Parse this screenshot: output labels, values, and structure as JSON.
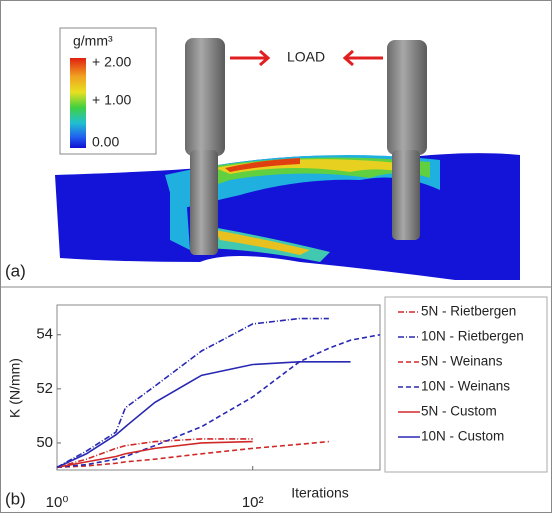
{
  "figure_a": {
    "label": "(a)",
    "annotation": "LOAD",
    "colorbar": {
      "title": "g/mm³",
      "labels": [
        "+ 2.00",
        "+ 1.00",
        "0.00"
      ]
    }
  },
  "chart_data": {
    "type": "line",
    "panel_label": "(b)",
    "x_label": "Iterations",
    "y_label": "K (N/mm)",
    "xscale": "log",
    "xlim": [
      1,
      2000
    ],
    "xticks": [
      {
        "value": 1,
        "label": "10⁰"
      },
      {
        "value": 100,
        "label": "10²"
      }
    ],
    "ylim": [
      49,
      55.1
    ],
    "yticks": [
      50,
      52,
      54
    ],
    "grid": false,
    "legend": "right",
    "x": [
      1,
      2,
      4,
      5,
      10,
      30,
      100,
      300,
      600,
      1000,
      2000
    ],
    "series": [
      {
        "name": "5N - Rietbergen",
        "color": "#d02828",
        "dash": "dashdot",
        "values": [
          49.1,
          49.4,
          49.8,
          49.9,
          50.05,
          50.15,
          50.15,
          null,
          null,
          null,
          null
        ]
      },
      {
        "name": "10N - Rietbergen",
        "color": "#2828b4",
        "dash": "dashdot",
        "values": [
          49.1,
          49.7,
          50.4,
          51.3,
          52.1,
          53.4,
          54.4,
          54.6,
          54.6,
          null,
          null
        ]
      },
      {
        "name": "5N - Weinans",
        "color": "#d02828",
        "dash": "dashed",
        "values": [
          49.1,
          49.15,
          49.25,
          49.3,
          49.4,
          49.6,
          49.8,
          49.95,
          50.05,
          null,
          null
        ]
      },
      {
        "name": "10N - Weinans",
        "color": "#2828b4",
        "dash": "dashed",
        "values": [
          49.1,
          49.2,
          49.4,
          49.5,
          49.9,
          50.6,
          51.7,
          53.0,
          53.5,
          53.8,
          54.0
        ]
      },
      {
        "name": "5N - Custom",
        "color": "#d02828",
        "dash": "solid",
        "values": [
          49.1,
          49.3,
          49.5,
          49.6,
          49.8,
          50.0,
          50.05,
          null,
          null,
          null,
          null
        ]
      },
      {
        "name": "10N - Custom",
        "color": "#2828b4",
        "dash": "solid",
        "values": [
          49.1,
          49.6,
          50.3,
          50.6,
          51.5,
          52.5,
          52.9,
          53.0,
          53.0,
          53.0,
          null
        ]
      }
    ]
  }
}
